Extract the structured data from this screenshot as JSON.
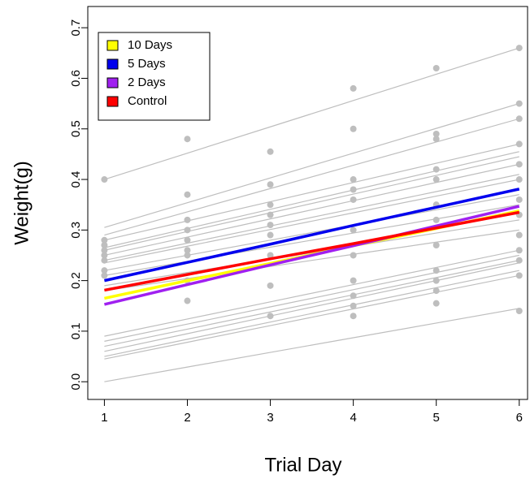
{
  "chart_data": {
    "type": "line",
    "x_label": "Trial Day",
    "y_label": "Weight(g)",
    "x": [
      1,
      2,
      3,
      4,
      5,
      6
    ],
    "xlim": [
      0.8,
      6.11
    ],
    "ylim": [
      -0.035,
      0.742
    ],
    "xticks": [
      1,
      2,
      3,
      4,
      5,
      6
    ],
    "yticks": [
      {
        "value": 0,
        "label": "0.0"
      },
      0.1,
      0.2,
      0.3,
      0.4,
      0.5,
      0.6,
      0.7
    ],
    "grid": false,
    "legend": "upper left",
    "points": {
      "color": "#bebebe",
      "x": [
        1,
        1,
        1,
        1,
        1,
        1,
        1,
        1,
        2,
        2,
        2,
        2,
        2,
        2,
        2,
        2,
        2,
        3,
        3,
        3,
        3,
        3,
        3,
        3,
        3,
        3,
        4,
        4,
        4,
        4,
        4,
        4,
        4,
        4,
        4,
        4,
        4,
        5,
        5,
        5,
        5,
        5,
        5,
        5,
        5,
        5,
        5,
        5,
        5,
        6,
        6,
        6,
        6,
        6,
        6,
        6,
        6,
        6,
        6,
        6,
        6,
        6
      ],
      "y": [
        0.4,
        0.28,
        0.27,
        0.26,
        0.25,
        0.24,
        0.22,
        0.21,
        0.48,
        0.37,
        0.32,
        0.3,
        0.28,
        0.26,
        0.25,
        0.2,
        0.16,
        0.455,
        0.39,
        0.35,
        0.33,
        0.31,
        0.29,
        0.25,
        0.19,
        0.13,
        0.58,
        0.5,
        0.4,
        0.38,
        0.36,
        0.3,
        0.25,
        0.2,
        0.17,
        0.15,
        0.13,
        0.62,
        0.49,
        0.48,
        0.42,
        0.4,
        0.35,
        0.32,
        0.27,
        0.22,
        0.2,
        0.18,
        0.155,
        0.66,
        0.55,
        0.52,
        0.47,
        0.43,
        0.4,
        0.36,
        0.33,
        0.29,
        0.26,
        0.24,
        0.21,
        0.14
      ]
    },
    "series": [
      {
        "color": "#bebebe",
        "width": 1.2,
        "values": [
          0.4,
          0.452,
          0.504,
          0.556,
          0.608,
          0.66
        ]
      },
      {
        "color": "#bebebe",
        "width": 1.2,
        "values": [
          0.305,
          0.354,
          0.403,
          0.452,
          0.501,
          0.55
        ]
      },
      {
        "color": "#bebebe",
        "width": 1.2,
        "values": [
          0.29,
          0.336,
          0.382,
          0.428,
          0.474,
          0.52
        ]
      },
      {
        "color": "#bebebe",
        "width": 1.2,
        "values": [
          0.28,
          0.318,
          0.356,
          0.394,
          0.432,
          0.47
        ]
      },
      {
        "color": "#bebebe",
        "width": 1.2,
        "values": [
          0.265,
          0.303,
          0.341,
          0.379,
          0.417,
          0.455
        ]
      },
      {
        "color": "#bebebe",
        "width": 1.2,
        "values": [
          0.26,
          0.297,
          0.334,
          0.371,
          0.408,
          0.445
        ]
      },
      {
        "color": "#bebebe",
        "width": 1.2,
        "values": [
          0.25,
          0.286,
          0.322,
          0.358,
          0.394,
          0.43
        ]
      },
      {
        "color": "#bebebe",
        "width": 1.2,
        "values": [
          0.24,
          0.274,
          0.308,
          0.342,
          0.376,
          0.41
        ]
      },
      {
        "color": "#bebebe",
        "width": 1.2,
        "values": [
          0.235,
          0.268,
          0.301,
          0.334,
          0.367,
          0.4
        ]
      },
      {
        "color": "#bebebe",
        "width": 1.2,
        "values": [
          0.22,
          0.25,
          0.28,
          0.31,
          0.34,
          0.37
        ]
      },
      {
        "color": "#bebebe",
        "width": 1.2,
        "values": [
          0.21,
          0.238,
          0.266,
          0.294,
          0.322,
          0.35
        ]
      },
      {
        "color": "#bebebe",
        "width": 1.2,
        "values": [
          0.19,
          0.216,
          0.242,
          0.268,
          0.294,
          0.32
        ]
      },
      {
        "color": "#bebebe",
        "width": 1.2,
        "values": [
          0.18,
          0.204,
          0.228,
          0.252,
          0.276,
          0.3
        ]
      },
      {
        "color": "#bebebe",
        "width": 1.2,
        "values": [
          0.09,
          0.124,
          0.158,
          0.192,
          0.226,
          0.26
        ]
      },
      {
        "color": "#bebebe",
        "width": 1.2,
        "values": [
          0.08,
          0.114,
          0.148,
          0.182,
          0.216,
          0.25
        ]
      },
      {
        "color": "#bebebe",
        "width": 1.2,
        "values": [
          0.07,
          0.104,
          0.138,
          0.172,
          0.206,
          0.24
        ]
      },
      {
        "color": "#bebebe",
        "width": 1.2,
        "values": [
          0.06,
          0.095,
          0.13,
          0.165,
          0.2,
          0.235
        ]
      },
      {
        "color": "#bebebe",
        "width": 1.2,
        "values": [
          0.05,
          0.084,
          0.118,
          0.152,
          0.186,
          0.22
        ]
      },
      {
        "color": "#bebebe",
        "width": 1.2,
        "values": [
          0.045,
          0.078,
          0.111,
          0.144,
          0.177,
          0.21
        ]
      },
      {
        "color": "#bebebe",
        "width": 1.2,
        "values": [
          0,
          0.029,
          0.058,
          0.087,
          0.116,
          0.145
        ]
      },
      {
        "name": "10 Days",
        "color": "#ffff00",
        "width": 3.5,
        "values": [
          0.165,
          0.2,
          0.234,
          0.269,
          0.303,
          0.338
        ]
      },
      {
        "name": "5 Days",
        "color": "#0000ee",
        "width": 3.5,
        "values": [
          0.2,
          0.236,
          0.272,
          0.309,
          0.345,
          0.381
        ]
      },
      {
        "name": "2 Days",
        "color": "#a020f0",
        "width": 3.5,
        "values": [
          0.153,
          0.192,
          0.231,
          0.269,
          0.308,
          0.347
        ]
      },
      {
        "name": "Control",
        "color": "#ff0000",
        "width": 3.5,
        "values": [
          0.181,
          0.212,
          0.243,
          0.273,
          0.304,
          0.335
        ]
      }
    ]
  }
}
